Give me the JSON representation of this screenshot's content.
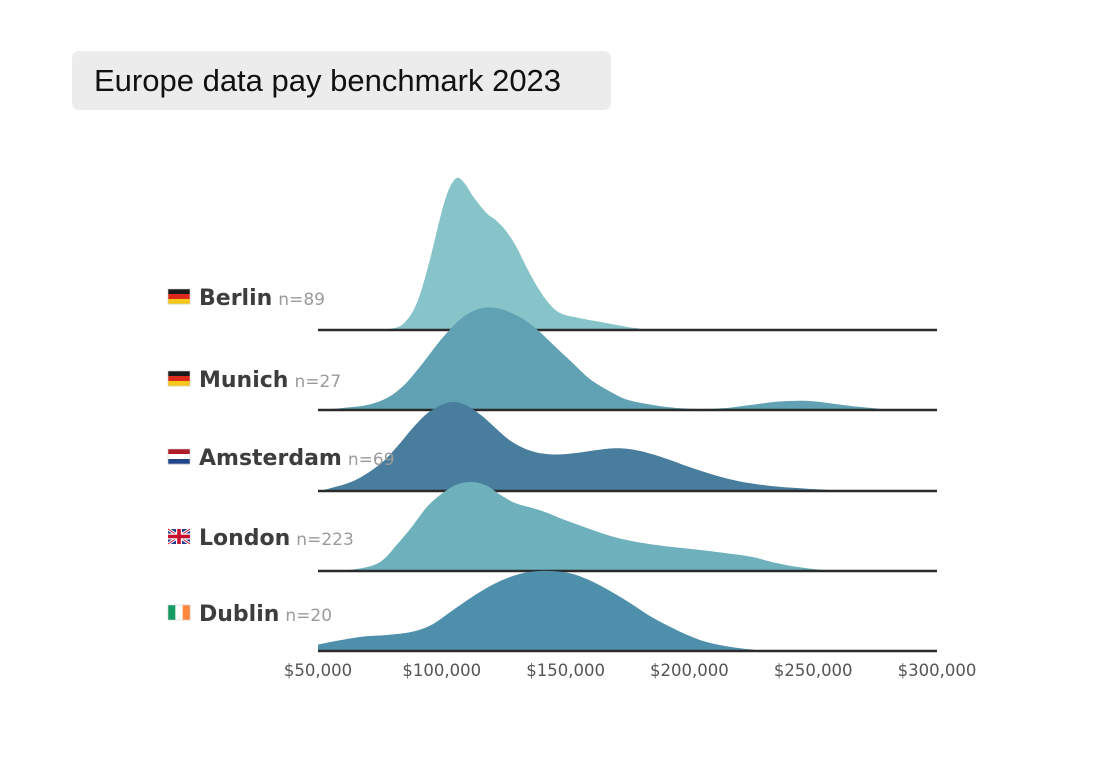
{
  "title": "Europe data pay benchmark 2023",
  "chart_data": {
    "type": "ridgeline",
    "title": "Europe data pay benchmark 2023",
    "xlabel": "",
    "ylabel": "",
    "xlim": [
      50000,
      300000
    ],
    "x_ticks": [
      50000,
      100000,
      150000,
      200000,
      250000,
      300000
    ],
    "x_tick_labels": [
      "$50,000",
      "$100,000",
      "$150,000",
      "$200,000",
      "$250,000",
      "$300,000"
    ],
    "series": [
      {
        "name": "Berlin",
        "n_label": "n=89",
        "flag": "de",
        "color": "#87c4c9",
        "density": [
          [
            50000,
            0
          ],
          [
            70000,
            0
          ],
          [
            80000,
            0.01
          ],
          [
            85000,
            0.05
          ],
          [
            90000,
            0.18
          ],
          [
            95000,
            0.45
          ],
          [
            100000,
            0.78
          ],
          [
            103000,
            0.93
          ],
          [
            106000,
            1.0
          ],
          [
            109000,
            0.97
          ],
          [
            113000,
            0.87
          ],
          [
            118000,
            0.77
          ],
          [
            122000,
            0.72
          ],
          [
            126000,
            0.65
          ],
          [
            130000,
            0.55
          ],
          [
            134000,
            0.42
          ],
          [
            138000,
            0.3
          ],
          [
            143000,
            0.18
          ],
          [
            148000,
            0.11
          ],
          [
            155000,
            0.08
          ],
          [
            165000,
            0.05
          ],
          [
            175000,
            0.02
          ],
          [
            180000,
            0.01
          ],
          [
            185000,
            0
          ],
          [
            300000,
            0
          ]
        ]
      },
      {
        "name": "Munich",
        "n_label": "n=27",
        "flag": "de",
        "color": "#60a2b3",
        "density": [
          [
            50000,
            0
          ],
          [
            60000,
            0.02
          ],
          [
            70000,
            0.05
          ],
          [
            78000,
            0.12
          ],
          [
            85000,
            0.25
          ],
          [
            92000,
            0.45
          ],
          [
            100000,
            0.7
          ],
          [
            108000,
            0.9
          ],
          [
            115000,
            0.99
          ],
          [
            122000,
            1.0
          ],
          [
            130000,
            0.93
          ],
          [
            137000,
            0.82
          ],
          [
            145000,
            0.64
          ],
          [
            152000,
            0.48
          ],
          [
            160000,
            0.3
          ],
          [
            168000,
            0.18
          ],
          [
            175000,
            0.1
          ],
          [
            185000,
            0.05
          ],
          [
            195000,
            0.02
          ],
          [
            205000,
            0.01
          ],
          [
            215000,
            0.02
          ],
          [
            225000,
            0.05
          ],
          [
            235000,
            0.08
          ],
          [
            245000,
            0.09
          ],
          [
            252000,
            0.08
          ],
          [
            265000,
            0.04
          ],
          [
            278000,
            0.01
          ],
          [
            285000,
            0
          ],
          [
            300000,
            0
          ]
        ]
      },
      {
        "name": "Amsterdam",
        "n_label": "n=69",
        "flag": "nl",
        "color": "#487d9d",
        "density": [
          [
            50000,
            0
          ],
          [
            55000,
            0.03
          ],
          [
            65000,
            0.12
          ],
          [
            75000,
            0.3
          ],
          [
            82000,
            0.5
          ],
          [
            88000,
            0.7
          ],
          [
            94000,
            0.87
          ],
          [
            100000,
            0.97
          ],
          [
            105000,
            1.0
          ],
          [
            110000,
            0.96
          ],
          [
            116000,
            0.85
          ],
          [
            122000,
            0.7
          ],
          [
            128000,
            0.56
          ],
          [
            136000,
            0.45
          ],
          [
            145000,
            0.41
          ],
          [
            155000,
            0.43
          ],
          [
            165000,
            0.47
          ],
          [
            172000,
            0.48
          ],
          [
            180000,
            0.45
          ],
          [
            190000,
            0.37
          ],
          [
            200000,
            0.27
          ],
          [
            210000,
            0.18
          ],
          [
            220000,
            0.11
          ],
          [
            232000,
            0.06
          ],
          [
            245000,
            0.03
          ],
          [
            258000,
            0.01
          ],
          [
            270000,
            0
          ],
          [
            300000,
            0
          ]
        ]
      },
      {
        "name": "London",
        "n_label": "n=223",
        "flag": "gb",
        "color": "#6eb1bd",
        "density": [
          [
            50000,
            0
          ],
          [
            65000,
            0.02
          ],
          [
            75000,
            0.1
          ],
          [
            82000,
            0.3
          ],
          [
            88000,
            0.5
          ],
          [
            94000,
            0.72
          ],
          [
            100000,
            0.87
          ],
          [
            106000,
            0.97
          ],
          [
            112000,
            1.0
          ],
          [
            118000,
            0.96
          ],
          [
            124000,
            0.85
          ],
          [
            130000,
            0.76
          ],
          [
            140000,
            0.68
          ],
          [
            150000,
            0.57
          ],
          [
            160000,
            0.47
          ],
          [
            170000,
            0.38
          ],
          [
            180000,
            0.32
          ],
          [
            190000,
            0.28
          ],
          [
            200000,
            0.25
          ],
          [
            215000,
            0.2
          ],
          [
            225000,
            0.16
          ],
          [
            235000,
            0.09
          ],
          [
            245000,
            0.04
          ],
          [
            255000,
            0.01
          ],
          [
            265000,
            0
          ],
          [
            300000,
            0
          ]
        ]
      },
      {
        "name": "Dublin",
        "n_label": "n=20",
        "flag": "ie",
        "color": "#4e90ab",
        "density": [
          [
            50000,
            0.08
          ],
          [
            58000,
            0.13
          ],
          [
            68000,
            0.18
          ],
          [
            78000,
            0.2
          ],
          [
            88000,
            0.24
          ],
          [
            96000,
            0.33
          ],
          [
            104000,
            0.5
          ],
          [
            112000,
            0.67
          ],
          [
            120000,
            0.82
          ],
          [
            128000,
            0.93
          ],
          [
            136000,
            0.99
          ],
          [
            144000,
            1.0
          ],
          [
            152000,
            0.97
          ],
          [
            160000,
            0.88
          ],
          [
            168000,
            0.75
          ],
          [
            176000,
            0.6
          ],
          [
            185000,
            0.42
          ],
          [
            195000,
            0.26
          ],
          [
            205000,
            0.13
          ],
          [
            215000,
            0.06
          ],
          [
            225000,
            0.02
          ],
          [
            235000,
            0
          ],
          [
            300000,
            0
          ]
        ]
      }
    ]
  }
}
